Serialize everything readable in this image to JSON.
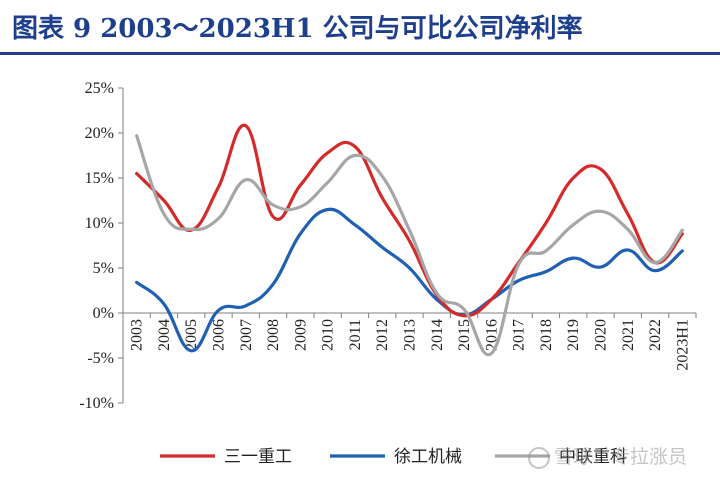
{
  "title": "图表 9   2003～2023H1 公司与可比公司净利率",
  "watermark": "雪球：专拉涨员",
  "chart_data": {
    "type": "line",
    "categories": [
      "2003",
      "2004",
      "2005",
      "2006",
      "2007",
      "2008",
      "2009",
      "2010",
      "2011",
      "2012",
      "2013",
      "2014",
      "2015",
      "2016",
      "2017",
      "2018",
      "2019",
      "2020",
      "2021",
      "2022",
      "2023H1"
    ],
    "y_tick_labels": [
      "25%",
      "20%",
      "15%",
      "10%",
      "5%",
      "0%",
      "-5%",
      "-10%"
    ],
    "ylim": [
      -10,
      25
    ],
    "y_step": 5,
    "grid": false,
    "legend_position": "bottom",
    "series": [
      {
        "name": "三一重工",
        "color": "#d42a2a",
        "values": [
          15.5,
          12.5,
          9.2,
          14.0,
          20.8,
          10.7,
          14.2,
          17.8,
          18.5,
          12.8,
          8.0,
          2.0,
          -0.3,
          1.5,
          5.6,
          10.0,
          15.0,
          16.0,
          11.0,
          5.6,
          8.8
        ]
      },
      {
        "name": "徐工机械",
        "color": "#1f5fb4",
        "values": [
          3.4,
          1.0,
          -4.2,
          0.3,
          0.8,
          3.2,
          8.8,
          11.5,
          9.8,
          7.3,
          5.0,
          1.5,
          -0.2,
          1.5,
          3.6,
          4.6,
          6.1,
          5.1,
          7.0,
          4.7,
          6.9
        ]
      },
      {
        "name": "中联重科",
        "color": "#a6a6a6",
        "values": [
          19.7,
          11.0,
          9.3,
          10.5,
          14.8,
          12.0,
          11.8,
          14.5,
          17.5,
          15.2,
          9.2,
          2.2,
          0.4,
          -4.5,
          5.4,
          6.9,
          9.8,
          11.3,
          9.3,
          5.6,
          9.2
        ]
      }
    ]
  }
}
